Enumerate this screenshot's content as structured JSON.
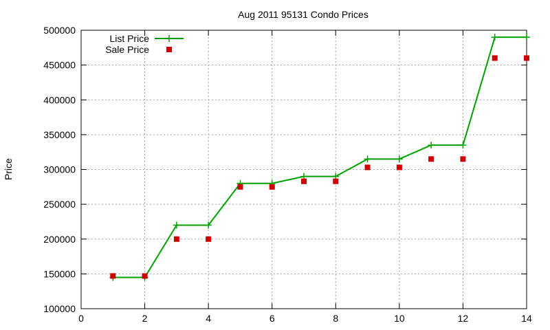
{
  "chart_data": {
    "type": "line",
    "title": "Aug 2011 95131 Condo Prices",
    "xlabel": "",
    "ylabel": "Price",
    "xlim": [
      0,
      14
    ],
    "ylim": [
      100000,
      500000
    ],
    "xticks": [
      0,
      2,
      4,
      6,
      8,
      10,
      12,
      14
    ],
    "yticks": [
      100000,
      150000,
      200000,
      250000,
      300000,
      350000,
      400000,
      450000,
      500000
    ],
    "grid": true,
    "legend_position": "top-left",
    "series": [
      {
        "name": "List Price",
        "style": "linespoints",
        "color": "#00a000",
        "x": [
          1,
          2,
          3,
          4,
          5,
          6,
          7,
          8,
          9,
          10,
          11,
          12,
          13,
          14
        ],
        "values": [
          145000,
          145000,
          220000,
          220000,
          280000,
          280000,
          290000,
          290000,
          315000,
          315000,
          335000,
          335000,
          490000,
          490000
        ]
      },
      {
        "name": "Sale Price",
        "style": "points",
        "color": "#cc0000",
        "x": [
          1,
          2,
          3,
          4,
          5,
          6,
          7,
          8,
          9,
          10,
          11,
          12,
          13,
          14
        ],
        "values": [
          147000,
          147000,
          200000,
          200000,
          275000,
          275000,
          283000,
          283000,
          303000,
          303000,
          315000,
          315000,
          460000,
          460000
        ]
      }
    ]
  }
}
